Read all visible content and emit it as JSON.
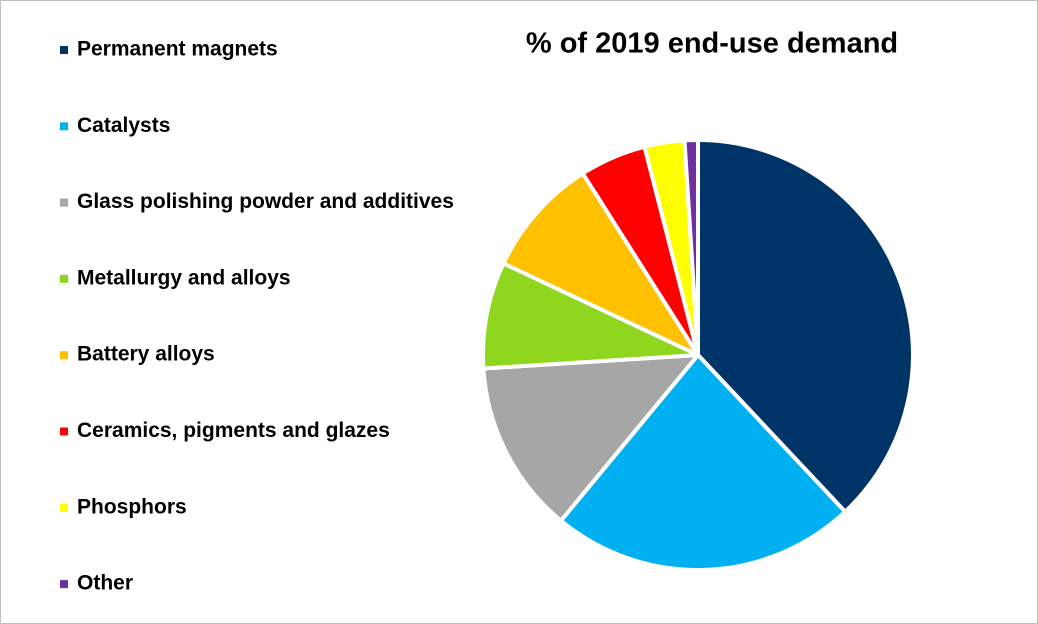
{
  "chart_data": {
    "type": "pie",
    "title": "% of 2019 end-use demand",
    "categories": [
      "Permanent magnets",
      "Catalysts",
      "Glass polishing powder and additives",
      "Metallurgy and alloys",
      "Battery alloys",
      "Ceramics, pigments and glazes",
      "Phosphors",
      "Other"
    ],
    "values": [
      38,
      23,
      13,
      8,
      9,
      5,
      3,
      1
    ],
    "colors": [
      "#003366",
      "#00b0f0",
      "#a6a6a6",
      "#8fd61f",
      "#ffc000",
      "#ff0000",
      "#ffff00",
      "#7030a0"
    ],
    "legend": "left"
  }
}
